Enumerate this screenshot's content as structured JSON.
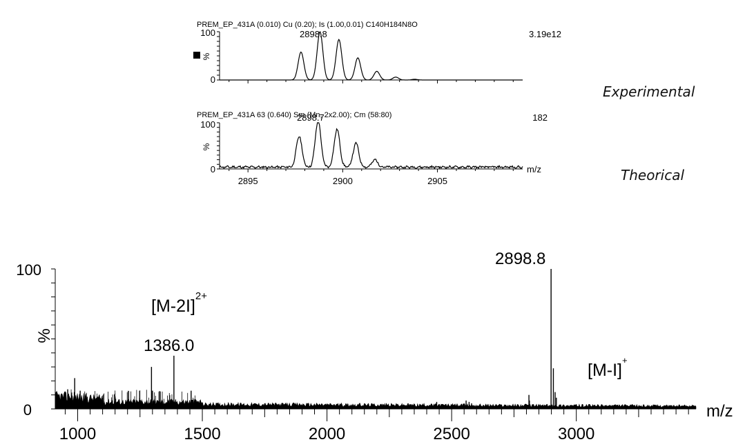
{
  "chart_data": [
    {
      "id": "inset-top",
      "type": "line",
      "header": "PREM_EP_431A  (0.010) Cu (0.20); Is (1.00,0.01) C140H184N8O",
      "peak_label": "2898.8",
      "intensity": "3.19e12",
      "ylabel": "%",
      "y_ticks": [
        "100",
        "0"
      ],
      "ylim": [
        0,
        100
      ],
      "xlim": [
        2893.5,
        2909.5
      ],
      "peaks": [
        {
          "x": 2897.8,
          "y": 58
        },
        {
          "x": 2898.8,
          "y": 100
        },
        {
          "x": 2899.8,
          "y": 84
        },
        {
          "x": 2900.8,
          "y": 46
        },
        {
          "x": 2901.8,
          "y": 18
        },
        {
          "x": 2902.8,
          "y": 6
        },
        {
          "x": 2903.8,
          "y": 1.5
        }
      ],
      "noise": 0
    },
    {
      "id": "inset-bottom",
      "type": "line",
      "header": "PREM_EP_431A 63 (0.640) Sm (Mn, 2x2.00); Cm (58:80)",
      "peak_label": "2898.7",
      "intensity": "182",
      "ylabel": "%",
      "y_ticks": [
        "100",
        "0"
      ],
      "xlabel": "m/z",
      "x_ticks": [
        "2895",
        "2900",
        "2905"
      ],
      "ylim": [
        0,
        100
      ],
      "xlim": [
        2893.5,
        2909.5
      ],
      "peaks": [
        {
          "x": 2897.7,
          "y": 67
        },
        {
          "x": 2898.7,
          "y": 100
        },
        {
          "x": 2899.7,
          "y": 82
        },
        {
          "x": 2900.7,
          "y": 52
        },
        {
          "x": 2901.7,
          "y": 16
        }
      ],
      "noise": 8
    },
    {
      "id": "main-spectrum",
      "type": "line",
      "ylabel": "%",
      "xlabel": "m/z",
      "y_ticks": [
        "100",
        "0"
      ],
      "x_ticks": [
        "1000",
        "1500",
        "2000",
        "2500",
        "3000"
      ],
      "ylim": [
        0,
        100
      ],
      "xlim": [
        910,
        3480
      ],
      "annotations": [
        {
          "text": "2898.8",
          "x": 2898.8
        },
        {
          "text": "1386.0",
          "x": 1386.0
        },
        {
          "text": "[M-2I]",
          "sup": "2+"
        },
        {
          "text": "[M-I]",
          "sup": "+"
        }
      ],
      "peaks": [
        {
          "x": 2898.8,
          "y": 100
        },
        {
          "x": 2908,
          "y": 29
        },
        {
          "x": 2915,
          "y": 12
        },
        {
          "x": 2920,
          "y": 8
        },
        {
          "x": 2810,
          "y": 10
        },
        {
          "x": 2812,
          "y": 6
        },
        {
          "x": 1386.0,
          "y": 38
        },
        {
          "x": 1296,
          "y": 30
        },
        {
          "x": 1300,
          "y": 13
        },
        {
          "x": 1455,
          "y": 13
        },
        {
          "x": 988,
          "y": 22
        },
        {
          "x": 960,
          "y": 14
        },
        {
          "x": 1010,
          "y": 13
        },
        {
          "x": 2440,
          "y": 5
        },
        {
          "x": 2558,
          "y": 6
        },
        {
          "x": 2570,
          "y": 5
        },
        {
          "x": 2580,
          "y": 4
        }
      ]
    }
  ],
  "labels": {
    "experimental": "Experimental",
    "theorical": "Theorical"
  }
}
